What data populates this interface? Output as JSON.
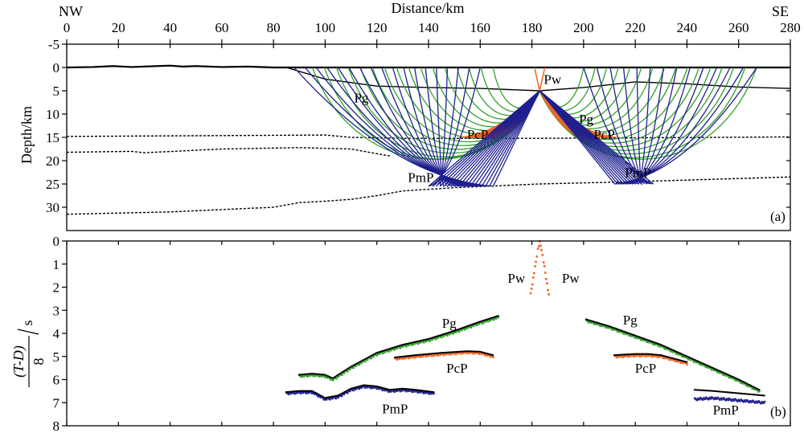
{
  "chart_data": [
    {
      "type": "line",
      "panel": "(a)",
      "title": "Distance/km",
      "xlabel": "Distance/km",
      "ylabel": "Depth/km",
      "xlim": [
        0,
        280
      ],
      "ylim": [
        -5,
        35
      ],
      "x_ticks": [
        0,
        20,
        40,
        60,
        80,
        100,
        120,
        140,
        160,
        180,
        200,
        220,
        240,
        260,
        280
      ],
      "y_ticks": [
        -5,
        0,
        5,
        10,
        15,
        20,
        25,
        30
      ],
      "corner_labels": {
        "left": "NW",
        "right": "SE"
      },
      "colors": {
        "Pg": "#33a02c",
        "PcP": "#f26522",
        "PmP": "#1f1f8f",
        "Pw": "#f26522",
        "interface": "#000000"
      },
      "source": {
        "x": 183,
        "depth": 5
      },
      "phase_labels": [
        {
          "text": "Pg",
          "x": 114,
          "depth": 6.5
        },
        {
          "text": "Pw",
          "x": 188,
          "depth": 2.5
        },
        {
          "text": "Pg",
          "x": 201,
          "depth": 11
        },
        {
          "text": "PcP",
          "x": 159,
          "depth": 14.3
        },
        {
          "text": "PcP",
          "x": 208,
          "depth": 14.3
        },
        {
          "text": "PmP",
          "x": 137,
          "depth": 23.5
        },
        {
          "text": "PmP",
          "x": 221,
          "depth": 22.5
        }
      ],
      "interfaces": [
        {
          "name": "topography",
          "style": "solid",
          "x": [
            0,
            10,
            18,
            25,
            35,
            40,
            45,
            50,
            60,
            70,
            80,
            90,
            280
          ],
          "depth": [
            0,
            -0.1,
            -0.3,
            -0.1,
            -0.3,
            -0.4,
            -0.2,
            -0.3,
            -0.1,
            -0.2,
            0,
            0,
            0
          ]
        },
        {
          "name": "sediment-base",
          "style": "solid",
          "x": [
            85,
            100,
            120,
            140,
            160,
            183,
            200,
            220,
            240,
            260,
            280
          ],
          "depth": [
            0,
            2.5,
            4,
            4.3,
            4.5,
            5,
            4.3,
            3.1,
            3.5,
            4.2,
            4.5
          ]
        },
        {
          "name": "conrad",
          "style": "dotted",
          "x": [
            0,
            100,
            110,
            130,
            150,
            183,
            220,
            250,
            280
          ],
          "depth": [
            14.8,
            14.5,
            15,
            15.2,
            15.2,
            15.2,
            15.1,
            15,
            14.9
          ]
        },
        {
          "name": "mid-crust",
          "style": "dotted",
          "x": [
            0,
            25,
            30,
            60,
            90,
            110,
            120,
            125
          ],
          "depth": [
            18.2,
            18.0,
            18.3,
            17.5,
            17.2,
            17.5,
            18.5,
            19
          ]
        },
        {
          "name": "moho",
          "style": "dotted",
          "x": [
            0,
            40,
            80,
            90,
            100,
            110,
            120,
            130,
            150,
            183,
            220,
            250,
            280
          ],
          "depth": [
            31.5,
            31,
            30,
            29,
            28.7,
            28.3,
            27.5,
            26.5,
            25.8,
            25,
            24.5,
            24,
            23.5
          ]
        }
      ],
      "ray_groups": [
        {
          "phase": "Pg",
          "side": "left",
          "x_start": 95,
          "x_end": 165,
          "count": 16
        },
        {
          "phase": "Pg",
          "side": "right",
          "x_start": 200,
          "x_end": 267,
          "count": 16
        },
        {
          "phase": "PcP",
          "side": "left",
          "reflect_x": [
            152,
            165
          ],
          "reflect_depth": 15,
          "count": 12
        },
        {
          "phase": "PcP",
          "side": "right",
          "reflect_x": [
            200,
            213
          ],
          "reflect_depth": 15,
          "count": 12
        },
        {
          "phase": "PmP",
          "side": "left",
          "x_start": 88,
          "x_end": 160,
          "reflect_x": [
            140,
            165
          ],
          "reflect_depth": 25.5,
          "count": 18
        },
        {
          "phase": "PmP",
          "side": "right",
          "x_start": 200,
          "x_end": 267,
          "reflect_x": [
            212,
            227
          ],
          "reflect_depth": 25,
          "count": 14
        }
      ]
    },
    {
      "type": "scatter",
      "panel": "(b)",
      "xlabel": "",
      "ylabel_main": "(T-D)",
      "ylabel_denom": "8",
      "ylabel_unit": "s",
      "xlim": [
        0,
        280
      ],
      "ylim": [
        0,
        8
      ],
      "y_ticks": [
        0,
        1,
        2,
        3,
        4,
        5,
        6,
        7,
        8
      ],
      "phase_labels": [
        {
          "text": "Pw",
          "x": 174,
          "t": 1.6
        },
        {
          "text": "Pw",
          "x": 195,
          "t": 1.6
        },
        {
          "text": "Pg",
          "x": 148,
          "t": 3.55
        },
        {
          "text": "PcP",
          "x": 151,
          "t": 5.5
        },
        {
          "text": "PmP",
          "x": 127,
          "t": 7.25
        },
        {
          "text": "Pg",
          "x": 218,
          "t": 3.4
        },
        {
          "text": "PcP",
          "x": 224,
          "t": 5.5
        },
        {
          "text": "PmP",
          "x": 255,
          "t": 7.3
        }
      ],
      "series": [
        {
          "name": "Pw",
          "color": "#f26522",
          "x": [
            179.5,
            180.5,
            181.5,
            182.3,
            183,
            183.7,
            184.5,
            185.5,
            186.5
          ],
          "t": [
            2.3,
            1.6,
            0.9,
            0.35,
            0.05,
            0.35,
            0.9,
            1.6,
            2.35
          ]
        },
        {
          "name": "Pg",
          "color": "#33a02c",
          "x": [
            90,
            95,
            100,
            103,
            110,
            120,
            130,
            140,
            150,
            160,
            167
          ],
          "t": [
            5.85,
            5.8,
            5.85,
            6.0,
            5.5,
            4.9,
            4.55,
            4.3,
            3.95,
            3.55,
            3.3
          ]
        },
        {
          "name": "Pg",
          "color": "#33a02c",
          "x": [
            201,
            210,
            220,
            230,
            240,
            250,
            260,
            268
          ],
          "t": [
            3.45,
            3.75,
            4.15,
            4.55,
            5.05,
            5.55,
            6.05,
            6.5
          ]
        },
        {
          "name": "PcP",
          "color": "#f26522",
          "x": [
            127,
            135,
            145,
            155,
            160,
            165
          ],
          "t": [
            5.1,
            5.0,
            4.9,
            4.82,
            4.85,
            5.0
          ]
        },
        {
          "name": "PcP",
          "color": "#f26522",
          "x": [
            212,
            220,
            225,
            230,
            240
          ],
          "t": [
            5.0,
            4.95,
            4.95,
            5.0,
            5.3
          ]
        },
        {
          "name": "PmP",
          "color": "#1f1f8f",
          "x": [
            85,
            90,
            95,
            100,
            105,
            110,
            115,
            120,
            125,
            130,
            135,
            142
          ],
          "t": [
            6.6,
            6.55,
            6.55,
            6.85,
            6.75,
            6.45,
            6.3,
            6.35,
            6.5,
            6.45,
            6.5,
            6.6
          ]
        },
        {
          "name": "PmP",
          "color": "#1f1f8f",
          "x": [
            243,
            250,
            255,
            260,
            265,
            270
          ],
          "t": [
            6.85,
            6.8,
            6.85,
            6.9,
            6.95,
            7.0
          ]
        },
        {
          "name": "model",
          "color": "#000000",
          "x": [
            90,
            95,
            100,
            103,
            110,
            120,
            130,
            140,
            150,
            160,
            167
          ],
          "t": [
            5.8,
            5.75,
            5.8,
            5.95,
            5.45,
            4.85,
            4.5,
            4.25,
            3.9,
            3.5,
            3.25
          ]
        },
        {
          "name": "model",
          "color": "#000000",
          "x": [
            201,
            210,
            220,
            230,
            240,
            250,
            260,
            268
          ],
          "t": [
            3.4,
            3.7,
            4.1,
            4.5,
            5.0,
            5.5,
            6.0,
            6.45
          ]
        },
        {
          "name": "model",
          "color": "#000000",
          "x": [
            85,
            90,
            95,
            100,
            105,
            110,
            115,
            120,
            125,
            130,
            135,
            142
          ],
          "t": [
            6.55,
            6.5,
            6.5,
            6.8,
            6.7,
            6.4,
            6.25,
            6.3,
            6.45,
            6.4,
            6.45,
            6.55
          ]
        },
        {
          "name": "model",
          "color": "#000000",
          "x": [
            127,
            135,
            145,
            155,
            160,
            165
          ],
          "t": [
            5.05,
            4.95,
            4.85,
            4.78,
            4.8,
            4.95
          ]
        },
        {
          "name": "model",
          "color": "#000000",
          "x": [
            212,
            220,
            225,
            230,
            240
          ],
          "t": [
            4.95,
            4.9,
            4.9,
            4.95,
            5.25
          ]
        },
        {
          "name": "model",
          "color": "#000000",
          "x": [
            243,
            250,
            255,
            260,
            265,
            270
          ],
          "t": [
            6.45,
            6.5,
            6.55,
            6.6,
            6.65,
            6.7
          ]
        }
      ]
    }
  ]
}
